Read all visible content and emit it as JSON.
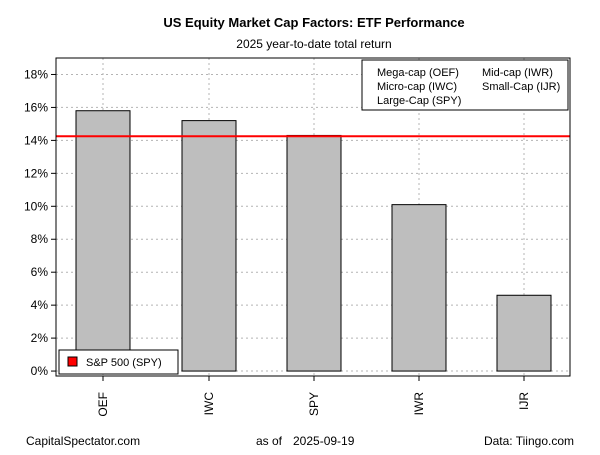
{
  "chart_data": {
    "type": "bar",
    "title": "US Equity Market Cap Factors: ETF Performance",
    "subtitle": "2025 year-to-date total return",
    "categories": [
      "OEF",
      "IWC",
      "SPY",
      "IWR",
      "IJR"
    ],
    "values": [
      15.8,
      15.2,
      14.3,
      10.1,
      4.6
    ],
    "unit": "%",
    "ylim": [
      -0.3,
      19
    ],
    "yticks": [
      0,
      2,
      4,
      6,
      8,
      10,
      12,
      14,
      16,
      18
    ],
    "yticklabels": [
      "0%",
      "2%",
      "4%",
      "6%",
      "8%",
      "10%",
      "12%",
      "14%",
      "16%",
      "18%"
    ],
    "grid": true,
    "bar_color": "#bebebe",
    "reference_line": {
      "value": 14.25,
      "color": "#ff0000",
      "label": "S&P 500 (SPY)",
      "legend_position": "bottom-left"
    },
    "legend_position": "top-right",
    "legend_entries": [
      "Mega-cap (OEF)",
      "Mid-cap (IWR)",
      "Micro-cap (IWC)",
      "Small-Cap (IJR)",
      "Large-Cap (SPY)"
    ]
  },
  "footer": {
    "left": "CapitalSpectator.com",
    "center_prefix": "as of",
    "center_date": "2025-09-19",
    "right": "Data: Tiingo.com"
  }
}
